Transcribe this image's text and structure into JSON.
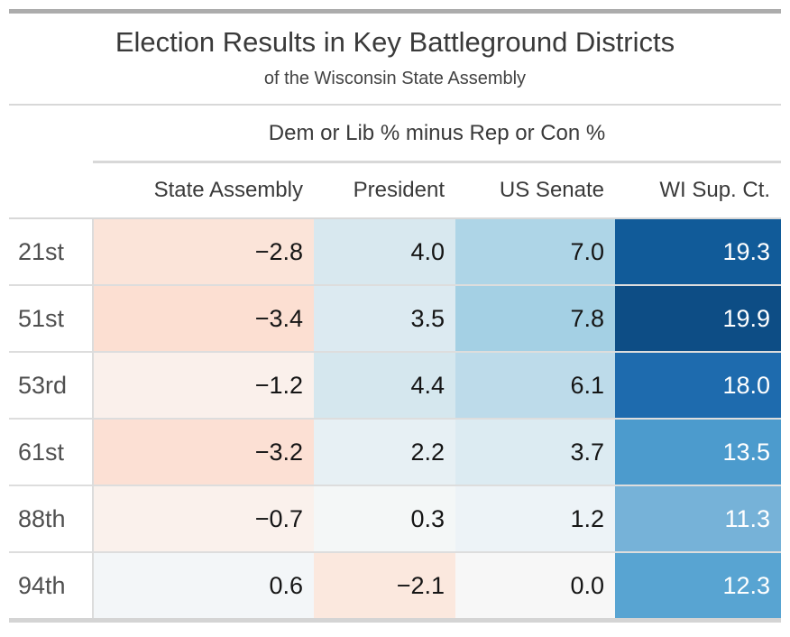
{
  "header": {
    "title": "Election Results in Key Battleground Districts",
    "subtitle": "of the Wisconsin State Assembly"
  },
  "table": {
    "spanner": "Dem or Lib % minus Rep or Con %",
    "columns": [
      "State Assembly",
      "President",
      "US Senate",
      "WI Sup. Ct."
    ],
    "rows": [
      {
        "district": "21st",
        "cells": [
          {
            "text": "−2.8",
            "bg": "#FBE4D9",
            "fg": "#151515"
          },
          {
            "text": "4.0",
            "bg": "#D8E8EF",
            "fg": "#151515"
          },
          {
            "text": "7.0",
            "bg": "#AED5E7",
            "fg": "#151515"
          },
          {
            "text": "19.3",
            "bg": "#115B99",
            "fg": "#FFFFFF"
          }
        ]
      },
      {
        "district": "51st",
        "cells": [
          {
            "text": "−3.4",
            "bg": "#FCDFD2",
            "fg": "#151515"
          },
          {
            "text": "3.5",
            "bg": "#DCEAF1",
            "fg": "#151515"
          },
          {
            "text": "7.8",
            "bg": "#A4D0E4",
            "fg": "#151515"
          },
          {
            "text": "19.9",
            "bg": "#0D4D85",
            "fg": "#FFFFFF"
          }
        ]
      },
      {
        "district": "53rd",
        "cells": [
          {
            "text": "−1.2",
            "bg": "#FAF0EB",
            "fg": "#151515"
          },
          {
            "text": "4.4",
            "bg": "#D5E7EE",
            "fg": "#151515"
          },
          {
            "text": "6.1",
            "bg": "#BDDBEA",
            "fg": "#151515"
          },
          {
            "text": "18.0",
            "bg": "#1E6BAE",
            "fg": "#FFFFFF"
          }
        ]
      },
      {
        "district": "61st",
        "cells": [
          {
            "text": "−3.2",
            "bg": "#FCE0D4",
            "fg": "#151515"
          },
          {
            "text": "2.2",
            "bg": "#E7F0F4",
            "fg": "#151515"
          },
          {
            "text": "3.7",
            "bg": "#DCEBF2",
            "fg": "#151515"
          },
          {
            "text": "13.5",
            "bg": "#4C9BCD",
            "fg": "#FFFFFF"
          }
        ]
      },
      {
        "district": "88th",
        "cells": [
          {
            "text": "−0.7",
            "bg": "#FAF1EC",
            "fg": "#151515"
          },
          {
            "text": "0.3",
            "bg": "#F4F7F7",
            "fg": "#151515"
          },
          {
            "text": "1.2",
            "bg": "#EDF3F7",
            "fg": "#151515"
          },
          {
            "text": "11.3",
            "bg": "#76B2D8",
            "fg": "#FFFFFF"
          }
        ]
      },
      {
        "district": "94th",
        "cells": [
          {
            "text": "0.6",
            "bg": "#F3F6F8",
            "fg": "#151515"
          },
          {
            "text": "−2.1",
            "bg": "#FBE8DE",
            "fg": "#151515"
          },
          {
            "text": "0.0",
            "bg": "#F7F7F7",
            "fg": "#151515"
          },
          {
            "text": "12.3",
            "bg": "#58A4D2",
            "fg": "#FFFFFF"
          }
        ]
      }
    ]
  },
  "colors": {
    "top_border": "#ACACAC",
    "bottom_border": "#D4D4D4",
    "grid_line": "#DDDDDD",
    "negative_max": "#FCDFD2",
    "positive_max": "#0D4D85"
  },
  "chart_data": {
    "type": "heatmap",
    "title": "Election Results in Key Battleground Districts",
    "subtitle": "of the Wisconsin State Assembly",
    "spanner_label": "Dem or Lib % minus Rep or Con %",
    "columns": [
      "State Assembly",
      "President",
      "US Senate",
      "WI Sup. Ct."
    ],
    "rows": [
      "21st",
      "51st",
      "53rd",
      "61st",
      "88th",
      "94th"
    ],
    "values": [
      [
        -2.8,
        4.0,
        7.0,
        19.3
      ],
      [
        -3.4,
        3.5,
        7.8,
        19.9
      ],
      [
        -1.2,
        4.4,
        6.1,
        18.0
      ],
      [
        -3.2,
        2.2,
        3.7,
        13.5
      ],
      [
        -0.7,
        0.3,
        1.2,
        11.3
      ],
      [
        0.6,
        -2.1,
        0.0,
        12.3
      ]
    ],
    "color_scale": "diverging: red/peach for negative margins, blue for positive margins",
    "legend_position": "none",
    "grid": true
  }
}
